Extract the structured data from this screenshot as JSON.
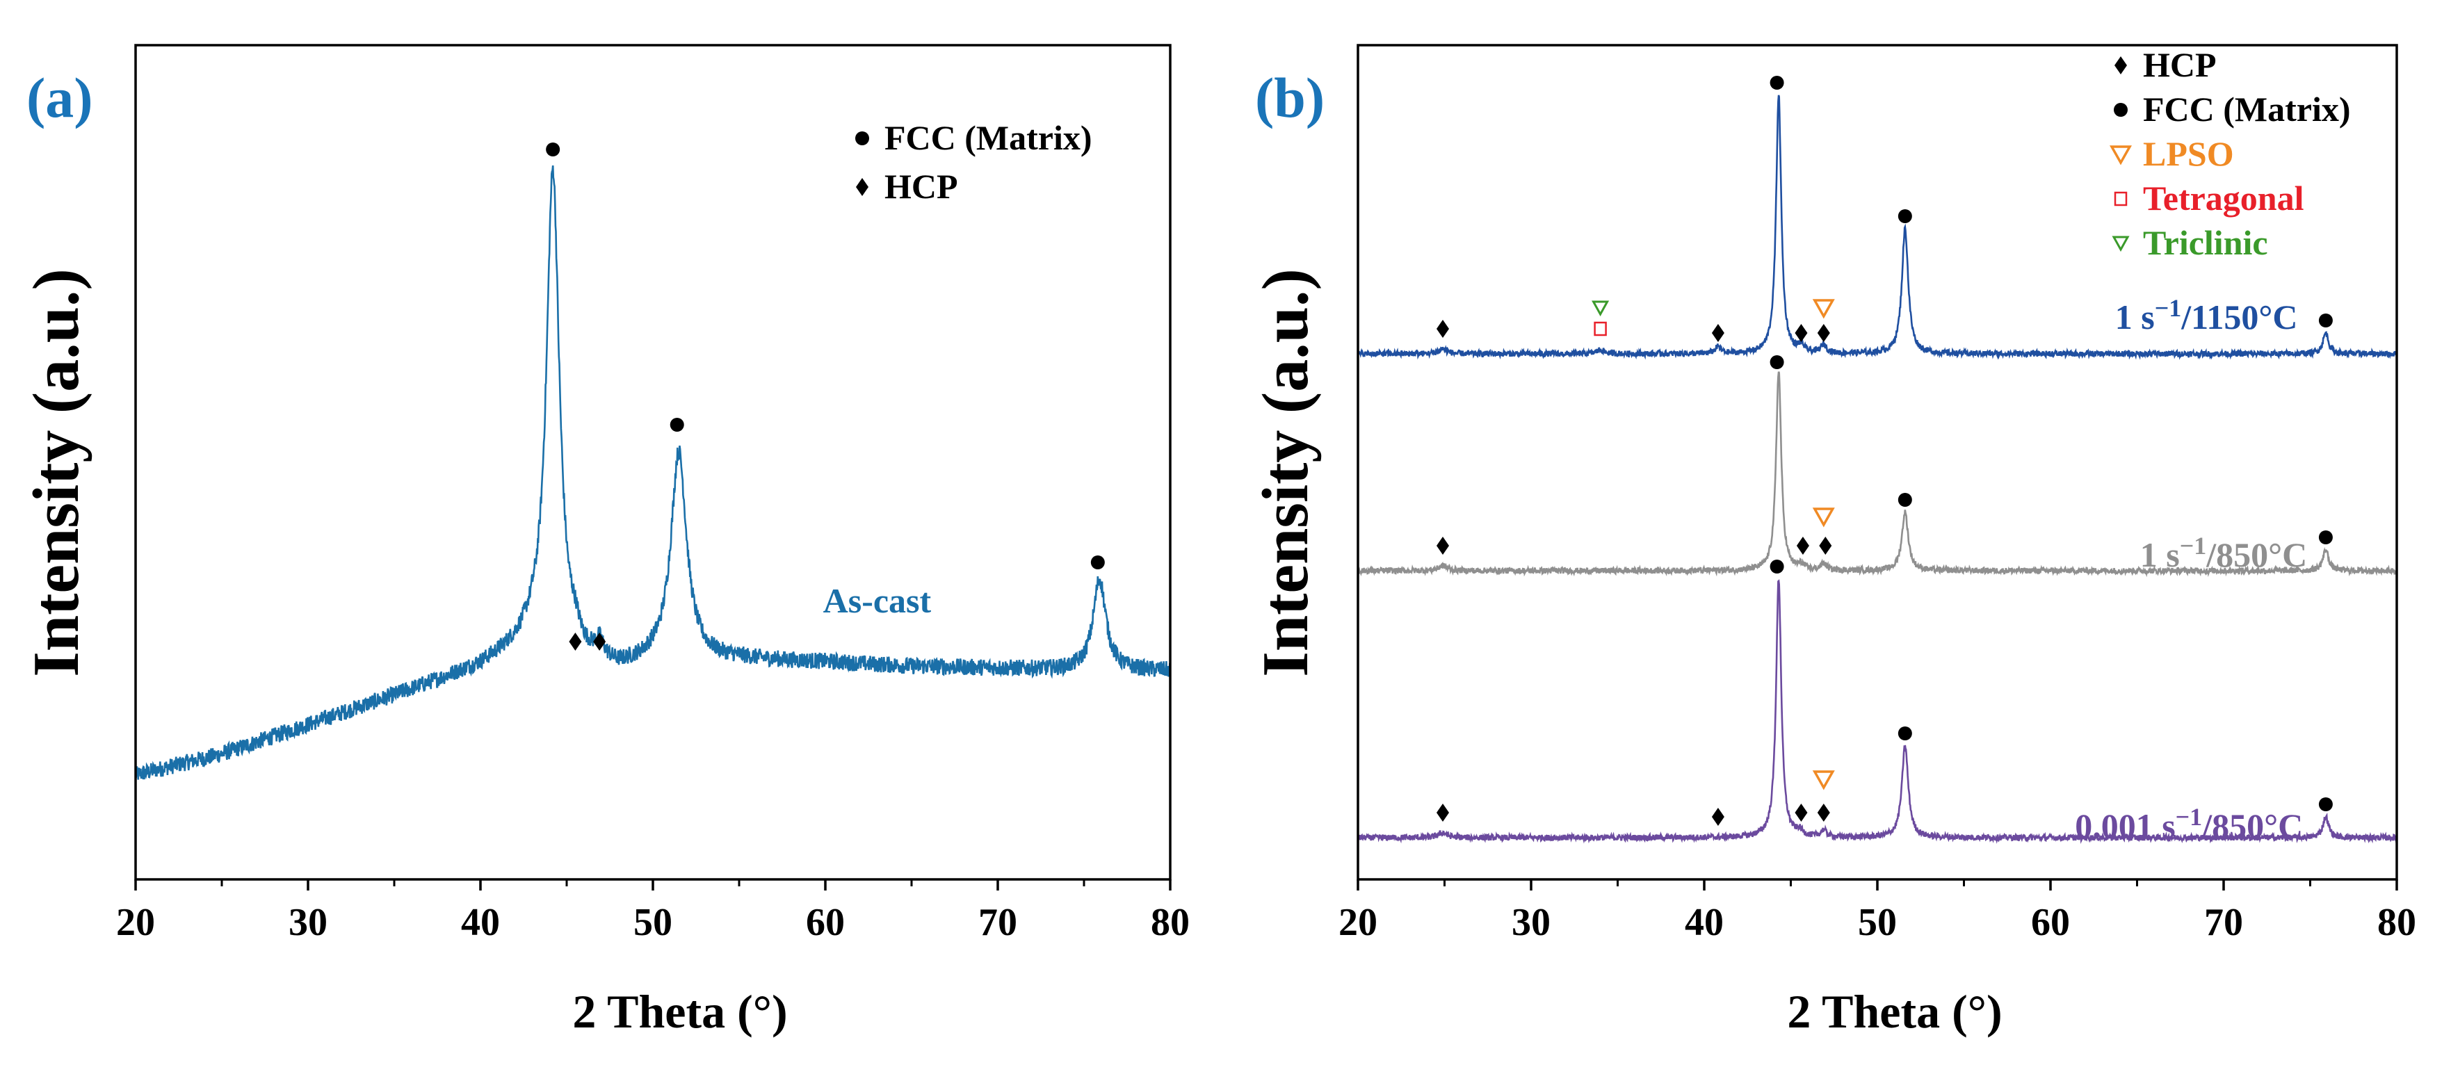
{
  "colors": {
    "ascast": "#1a6fa8",
    "s1150": "#1f4fa0",
    "s850": "#8f8f8f",
    "s0001": "#6b4a9e",
    "lpso": "#f08a24",
    "tetragonal": "#e8202a",
    "triclinic": "#3a9a2a",
    "label_blue": "#1a74b8",
    "axis": "#000000"
  },
  "chart_data": [
    {
      "type": "line",
      "panel_label": "(a)",
      "xlabel": "2 Theta (°)",
      "ylabel": "Intensity (a.u.)",
      "xlim": [
        20,
        80
      ],
      "ylim": [
        0,
        100
      ],
      "xticks": [
        20,
        30,
        40,
        50,
        60,
        70,
        80
      ],
      "legend": [
        {
          "marker": "circle",
          "label": "FCC (Matrix)",
          "color": "#000000"
        },
        {
          "marker": "diamond",
          "label": "HCP",
          "color": "#000000"
        }
      ],
      "series": [
        {
          "name": "As-cast",
          "color_key": "ascast",
          "label_at": [
            63,
            32
          ],
          "baseline": [
            [
              20,
              12.5
            ],
            [
              25,
              15
            ],
            [
              30,
              18.5
            ],
            [
              35,
              22
            ],
            [
              40,
              25.5
            ],
            [
              43,
              28.5
            ],
            [
              45,
              26
            ],
            [
              48,
              25
            ],
            [
              50,
              26
            ],
            [
              55,
              26.3
            ],
            [
              60,
              26
            ],
            [
              65,
              25.5
            ],
            [
              70,
              25.3
            ],
            [
              75,
              25
            ],
            [
              80,
              25
            ]
          ],
          "noise": 1.0,
          "peaks": [
            {
              "x": 44.2,
              "h": 58,
              "w": 0.45
            },
            {
              "x": 45.5,
              "h": 1.5,
              "w": 0.3
            },
            {
              "x": 46.9,
              "h": 2.0,
              "w": 0.3
            },
            {
              "x": 51.5,
              "h": 25,
              "w": 0.55
            },
            {
              "x": 75.9,
              "h": 11,
              "w": 0.45
            }
          ],
          "markers": [
            {
              "x": 44.2,
              "y": 87.5,
              "type": "circle"
            },
            {
              "x": 45.5,
              "y": 28.5,
              "type": "diamond"
            },
            {
              "x": 46.9,
              "y": 28.5,
              "type": "diamond"
            },
            {
              "x": 51.4,
              "y": 54.5,
              "type": "circle"
            },
            {
              "x": 75.8,
              "y": 38,
              "type": "circle"
            }
          ]
        }
      ]
    },
    {
      "type": "line",
      "panel_label": "(b)",
      "xlabel": "2 Theta (°)",
      "ylabel": "Intensity (a.u.)",
      "xlim": [
        20,
        80
      ],
      "ylim": [
        0,
        100
      ],
      "xticks": [
        20,
        30,
        40,
        50,
        60,
        70,
        80
      ],
      "legend": [
        {
          "marker": "diamond",
          "label": "HCP",
          "color": "#000000"
        },
        {
          "marker": "circle",
          "label": "FCC (Matrix)",
          "color": "#000000"
        },
        {
          "marker": "triangle",
          "label": "LPSO",
          "color": "#f08a24"
        },
        {
          "marker": "square",
          "label": "Tetragonal",
          "color": "#e8202a"
        },
        {
          "marker": "triangle-small",
          "label": "Triclinic",
          "color": "#3a9a2a"
        }
      ],
      "series": [
        {
          "name": "0.001 s⁻¹/850°C",
          "label_parts": [
            "0.001 s",
            "−1",
            "/850°C"
          ],
          "color_key": "s0001",
          "label_at": [
            68,
            5
          ],
          "baseline": [
            [
              20,
              5
            ],
            [
              80,
              5
            ]
          ],
          "noise": 0.35,
          "peaks": [
            {
              "x": 24.9,
              "h": 0.6,
              "w": 0.3
            },
            {
              "x": 44.3,
              "h": 31,
              "w": 0.18
            },
            {
              "x": 45.5,
              "h": 0.6,
              "w": 0.2
            },
            {
              "x": 46.9,
              "h": 0.8,
              "w": 0.2
            },
            {
              "x": 51.6,
              "h": 11,
              "w": 0.22
            },
            {
              "x": 75.9,
              "h": 2.5,
              "w": 0.2
            }
          ],
          "markers": [
            {
              "x": 24.9,
              "y": 8,
              "type": "diamond"
            },
            {
              "x": 40.8,
              "y": 7.5,
              "type": "diamond"
            },
            {
              "x": 44.2,
              "y": 37.5,
              "type": "circle"
            },
            {
              "x": 45.6,
              "y": 8,
              "type": "diamond"
            },
            {
              "x": 46.9,
              "y": 8,
              "type": "diamond"
            },
            {
              "x": 46.9,
              "y": 12,
              "type": "triangle"
            },
            {
              "x": 51.6,
              "y": 17.5,
              "type": "circle"
            },
            {
              "x": 75.9,
              "y": 9,
              "type": "circle"
            }
          ]
        },
        {
          "name": "1 s⁻¹/850°C",
          "label_parts": [
            "1 s",
            "−1",
            "/850°C"
          ],
          "color_key": "s850",
          "label_at": [
            70,
            37.5
          ],
          "baseline": [
            [
              20,
              37
            ],
            [
              80,
              37
            ]
          ],
          "noise": 0.35,
          "peaks": [
            {
              "x": 24.9,
              "h": 0.6,
              "w": 0.3
            },
            {
              "x": 44.3,
              "h": 24,
              "w": 0.18
            },
            {
              "x": 45.6,
              "h": 0.6,
              "w": 0.2
            },
            {
              "x": 46.9,
              "h": 0.8,
              "w": 0.2
            },
            {
              "x": 51.6,
              "h": 7,
              "w": 0.22
            },
            {
              "x": 75.9,
              "h": 2.5,
              "w": 0.2
            }
          ],
          "markers": [
            {
              "x": 24.9,
              "y": 40,
              "type": "diamond"
            },
            {
              "x": 44.2,
              "y": 62,
              "type": "circle"
            },
            {
              "x": 45.7,
              "y": 40,
              "type": "diamond"
            },
            {
              "x": 47.0,
              "y": 40,
              "type": "diamond"
            },
            {
              "x": 46.9,
              "y": 43.5,
              "type": "triangle"
            },
            {
              "x": 51.6,
              "y": 45.5,
              "type": "circle"
            },
            {
              "x": 75.9,
              "y": 41,
              "type": "circle"
            }
          ]
        },
        {
          "name": "1 s⁻¹/1150°C",
          "label_parts": [
            "1 s",
            "−1",
            "/1150°C"
          ],
          "color_key": "s1150",
          "label_at": [
            69,
            66
          ],
          "baseline": [
            [
              20,
              63
            ],
            [
              80,
              63
            ]
          ],
          "noise": 0.35,
          "peaks": [
            {
              "x": 24.9,
              "h": 0.6,
              "w": 0.3
            },
            {
              "x": 34.0,
              "h": 0.5,
              "w": 0.25
            },
            {
              "x": 40.8,
              "h": 0.8,
              "w": 0.2
            },
            {
              "x": 44.3,
              "h": 31,
              "w": 0.18
            },
            {
              "x": 45.6,
              "h": 0.8,
              "w": 0.2
            },
            {
              "x": 46.9,
              "h": 1.0,
              "w": 0.2
            },
            {
              "x": 51.6,
              "h": 15,
              "w": 0.22
            },
            {
              "x": 75.9,
              "h": 2.5,
              "w": 0.2
            }
          ],
          "markers": [
            {
              "x": 24.9,
              "y": 66,
              "type": "diamond"
            },
            {
              "x": 34.0,
              "y": 66,
              "type": "square"
            },
            {
              "x": 34.0,
              "y": 68.5,
              "type": "triangle-small"
            },
            {
              "x": 40.8,
              "y": 65.5,
              "type": "diamond"
            },
            {
              "x": 44.2,
              "y": 95.5,
              "type": "circle"
            },
            {
              "x": 45.6,
              "y": 65.5,
              "type": "diamond"
            },
            {
              "x": 46.9,
              "y": 65.5,
              "type": "diamond"
            },
            {
              "x": 46.9,
              "y": 68.5,
              "type": "triangle"
            },
            {
              "x": 51.6,
              "y": 79.5,
              "type": "circle"
            },
            {
              "x": 75.9,
              "y": 67,
              "type": "circle"
            }
          ]
        }
      ]
    }
  ]
}
